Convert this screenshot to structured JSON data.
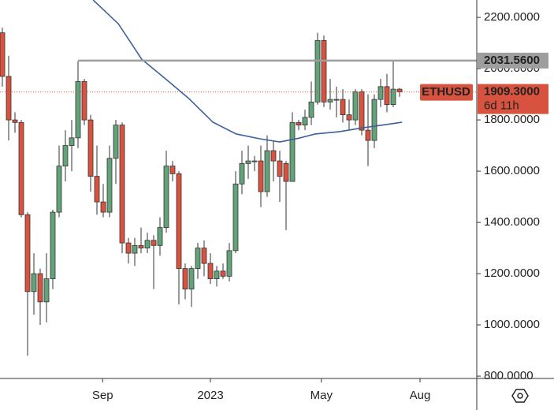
{
  "chart_data": {
    "type": "candlestick",
    "symbol": "ETHUSD",
    "countdown": "6d 11h",
    "up_color": "#64a27a",
    "down_color": "#d7533f",
    "open": [
      2140,
      1970,
      1800,
      1790,
      1430,
      1130,
      1200,
      1090,
      1180,
      1440,
      1620,
      1700,
      1730,
      1950,
      1800,
      1580,
      1480,
      1440,
      1650,
      1780,
      1320,
      1280,
      1310,
      1300,
      1330,
      1310,
      1380,
      1620,
      1590,
      1220,
      1140,
      1220,
      1300,
      1240,
      1180,
      1210,
      1190,
      1290,
      1550,
      1630,
      1640,
      1640,
      1520,
      1680,
      1640,
      1630,
      1560,
      1790,
      1780,
      1810,
      1870,
      2110,
      1870,
      1880,
      1880,
      1820,
      1800,
      1910,
      1760,
      1720,
      1880,
      1930,
      1860,
      1920
    ],
    "high": [
      2160,
      2050,
      1830,
      1800,
      1440,
      1280,
      1220,
      1280,
      1450,
      1700,
      1760,
      1800,
      2030,
      1960,
      1820,
      1700,
      1550,
      1700,
      1800,
      1790,
      1340,
      1340,
      1380,
      1360,
      1350,
      1420,
      1680,
      1640,
      1600,
      1240,
      1230,
      1320,
      1330,
      1280,
      1230,
      1240,
      1320,
      1600,
      1680,
      1700,
      1660,
      1700,
      1740,
      1720,
      1680,
      1640,
      1830,
      1800,
      1840,
      1950,
      2140,
      2130,
      1960,
      1930,
      1920,
      1880,
      1920,
      1920,
      1900,
      1900,
      1960,
      1980,
      2030,
      1925
    ],
    "low": [
      1930,
      1720,
      1750,
      1420,
      880,
      1040,
      1000,
      1010,
      1140,
      1420,
      1560,
      1600,
      1690,
      1780,
      1520,
      1430,
      1420,
      1420,
      1550,
      1280,
      1240,
      1230,
      1280,
      1280,
      1140,
      1270,
      1360,
      1560,
      1080,
      1100,
      1070,
      1180,
      1190,
      1160,
      1150,
      1180,
      1170,
      1280,
      1510,
      1570,
      1600,
      1460,
      1500,
      1560,
      1480,
      1370,
      1560,
      1760,
      1760,
      1780,
      1860,
      1850,
      1840,
      1810,
      1790,
      1760,
      1780,
      1740,
      1620,
      1690,
      1850,
      1830,
      1850,
      1890
    ],
    "close": [
      1970,
      1800,
      1790,
      1430,
      1130,
      1200,
      1090,
      1180,
      1440,
      1620,
      1700,
      1730,
      1950,
      1800,
      1580,
      1480,
      1440,
      1650,
      1780,
      1320,
      1280,
      1310,
      1300,
      1330,
      1310,
      1380,
      1620,
      1590,
      1220,
      1140,
      1220,
      1300,
      1240,
      1180,
      1210,
      1190,
      1290,
      1550,
      1630,
      1640,
      1640,
      1520,
      1680,
      1640,
      1580,
      1560,
      1790,
      1780,
      1810,
      1870,
      2110,
      1870,
      1880,
      1880,
      1820,
      1800,
      1910,
      1760,
      1720,
      1880,
      1930,
      1860,
      1920,
      1909.3
    ],
    "xlim": [
      -0.375,
      75.25
    ],
    "xticks": [
      {
        "value": 15.9,
        "label": "Sep"
      },
      {
        "value": 33,
        "label": "2023"
      },
      {
        "value": 50.6,
        "label": "May"
      },
      {
        "value": 66.25,
        "label": "Aug"
      }
    ],
    "ylim": [
      791,
      2268
    ],
    "yticks": [
      {
        "value": 800,
        "label": "800.0000"
      },
      {
        "value": 1000,
        "label": "1000.0000"
      },
      {
        "value": 1200,
        "label": "1200.0000"
      },
      {
        "value": 1400,
        "label": "1400.0000"
      },
      {
        "value": 1600,
        "label": "1600.0000"
      },
      {
        "value": 1800,
        "label": "1800.0000"
      },
      {
        "value": 2000,
        "label": "2000.0000"
      },
      {
        "value": 2200,
        "label": "2200.0000"
      }
    ],
    "level": {
      "value": 2031.56,
      "label": "2031.5600",
      "start": 12,
      "color": "#9e9e9e"
    },
    "last_price": {
      "value": 1909.3,
      "label": "1909.3000"
    },
    "ma": {
      "color": "#3d5f9c",
      "x": [
        14.4,
        18.4,
        22.1,
        25.9,
        29.6,
        33.4,
        37.1,
        40.9,
        44,
        47.1,
        49.6,
        53.4,
        57.1,
        60.9,
        63.4
      ],
      "values": [
        2268,
        2175,
        2037,
        1960,
        1883,
        1791,
        1745,
        1726,
        1714,
        1729,
        1745,
        1754,
        1769,
        1782,
        1791
      ]
    }
  }
}
